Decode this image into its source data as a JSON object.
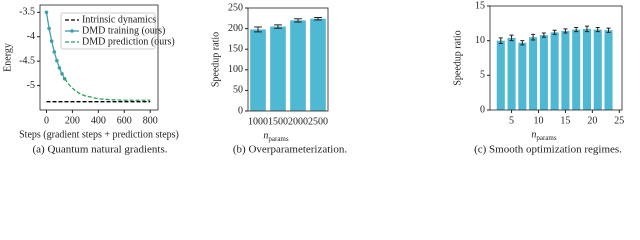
{
  "chart_data": [
    {
      "type": "line",
      "caption": "(a) Quantum natural gradients.",
      "xlabel": "Steps (gradient steps + prediction steps)",
      "ylabel": "Energy",
      "xlim": [
        -50,
        860
      ],
      "ylim": [
        -5.5,
        -3.35
      ],
      "xticks": [
        0,
        200,
        400,
        600,
        800
      ],
      "yticks": [
        -3.5,
        -4.0,
        -4.5,
        -5.0
      ],
      "series": [
        {
          "name": "Intrinsic dynamics",
          "color": "#000000",
          "linestyle": "dashed",
          "x": [
            0,
            800
          ],
          "values": [
            -5.33,
            -5.33
          ]
        },
        {
          "name": "DMD training (ours)",
          "color": "#3f9fa8",
          "linestyle": "solid",
          "marker": "o",
          "x": [
            0,
            20,
            40,
            60,
            80,
            100,
            120,
            140
          ],
          "values": [
            -3.5,
            -3.83,
            -4.09,
            -4.31,
            -4.49,
            -4.64,
            -4.76,
            -4.86
          ]
        },
        {
          "name": "DMD prediction (ours)",
          "color": "#2ca05a",
          "linestyle": "dashed",
          "x": [
            140,
            180,
            220,
            260,
            300,
            400,
            500,
            600,
            700,
            800
          ],
          "values": [
            -4.86,
            -5.0,
            -5.1,
            -5.17,
            -5.21,
            -5.27,
            -5.29,
            -5.3,
            -5.3,
            -5.3
          ]
        }
      ],
      "legend": "upper right"
    },
    {
      "type": "bar",
      "caption": "(b) Overparameterization.",
      "xlabel": "n",
      "xlabel_sub": "params",
      "ylabel": "Speedup ratio",
      "categories": [
        "1000",
        "1500",
        "2000",
        "2500"
      ],
      "values": [
        198,
        205,
        220,
        224
      ],
      "errors": [
        6,
        4,
        4,
        3
      ],
      "color": "#4fb8d2",
      "ylim": [
        0,
        250
      ],
      "yticks": [
        0,
        50,
        100,
        150,
        200,
        250
      ]
    },
    {
      "type": "bar",
      "caption": "(c) Smooth optimization regimes.",
      "xlabel": "n",
      "xlabel_sub": "params",
      "ylabel": "Speedup ratio",
      "x": [
        3,
        5,
        7,
        9,
        11,
        13,
        15,
        17,
        19,
        21,
        23
      ],
      "values": [
        10.0,
        10.4,
        9.7,
        10.5,
        10.8,
        11.2,
        11.4,
        11.6,
        11.7,
        11.6,
        11.5
      ],
      "errors": [
        0.4,
        0.4,
        0.3,
        0.4,
        0.3,
        0.3,
        0.3,
        0.3,
        0.4,
        0.3,
        0.3
      ],
      "color": "#4fb8d2",
      "xlim": [
        1,
        25.5
      ],
      "xticks": [
        5,
        10,
        15,
        20,
        25
      ],
      "ylim": [
        0,
        15
      ],
      "yticks": [
        0,
        5,
        10,
        15
      ]
    }
  ]
}
